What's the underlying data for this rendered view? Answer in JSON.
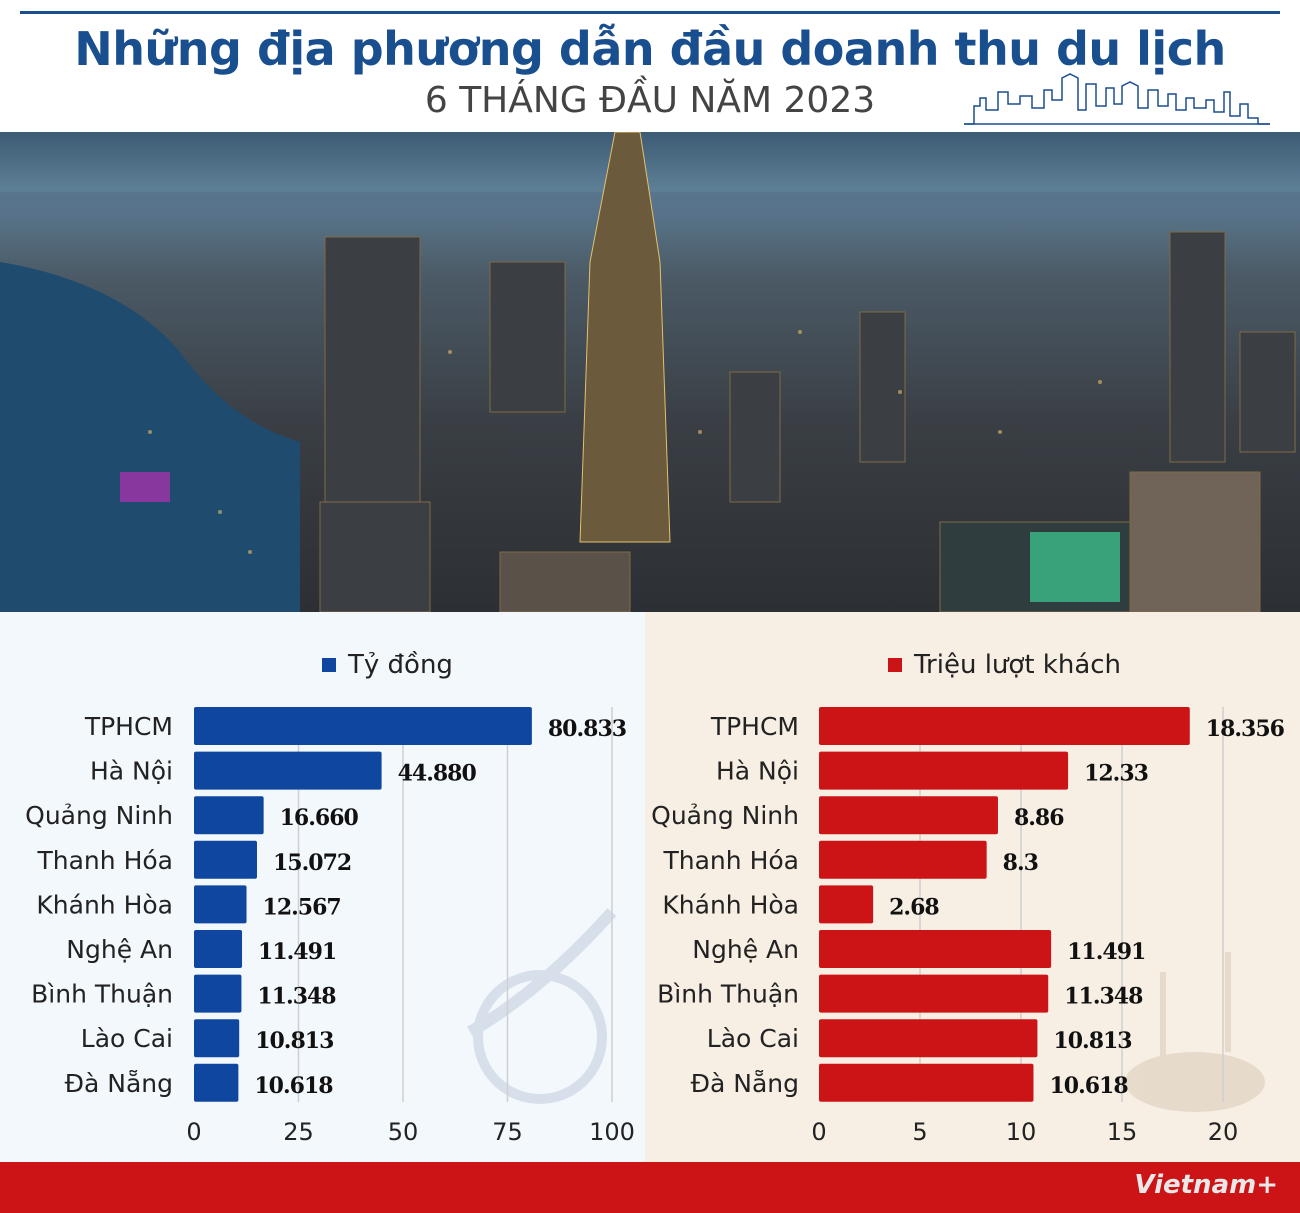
{
  "header": {
    "title": "Những địa phương dẫn đầu doanh thu du lịch",
    "subtitle": "6 THÁNG ĐẦU NĂM 2023"
  },
  "footer": {
    "logo": "Vietnam+"
  },
  "colors": {
    "title": "#1a4f8f",
    "revenue_bar": "#0f47a0",
    "visitors_bar": "#cc1417",
    "footer": "#cc1417"
  },
  "chart_data": [
    {
      "type": "bar",
      "orientation": "horizontal",
      "legend": "Tỷ đồng",
      "categories": [
        "TPHCM",
        "Hà Nội",
        "Quảng Ninh",
        "Thanh Hóa",
        "Khánh Hòa",
        "Nghệ An",
        "Bình Thuận",
        "Lào Cai",
        "Đà Nẵng"
      ],
      "values": [
        80.833,
        44.88,
        16.66,
        15.072,
        12.567,
        11.491,
        11.348,
        10.813,
        10.618
      ],
      "data_labels": [
        "80.833",
        "44.880",
        "16.660",
        "15.072",
        "12.567",
        "11.491",
        "11.348",
        "10.813",
        "10.618"
      ],
      "xlim": [
        0,
        100
      ],
      "ticks": [
        "0",
        "25",
        "50",
        "75",
        "100"
      ],
      "tick_values": [
        0,
        25,
        50,
        75,
        100
      ],
      "grid": true,
      "color": "#0f47a0"
    },
    {
      "type": "bar",
      "orientation": "horizontal",
      "legend": "Triệu lượt khách",
      "categories": [
        "TPHCM",
        "Hà Nội",
        "Quảng Ninh",
        "Thanh Hóa",
        "Khánh Hòa",
        "Nghệ An",
        "Bình Thuận",
        "Lào Cai",
        "Đà Nẵng"
      ],
      "values": [
        18.356,
        12.33,
        8.86,
        8.3,
        2.68,
        11.491,
        11.348,
        10.813,
        10.618
      ],
      "data_labels": [
        "18.356",
        "12.33",
        "8.86",
        "8.3",
        "2.68",
        "11.491",
        "11.348",
        "10.813",
        "10.618"
      ],
      "xlim": [
        0,
        20
      ],
      "ticks": [
        "0",
        "5",
        "10",
        "15",
        "20"
      ],
      "tick_values": [
        0,
        5,
        10,
        15,
        20
      ],
      "grid": true,
      "color": "#cc1417"
    }
  ]
}
